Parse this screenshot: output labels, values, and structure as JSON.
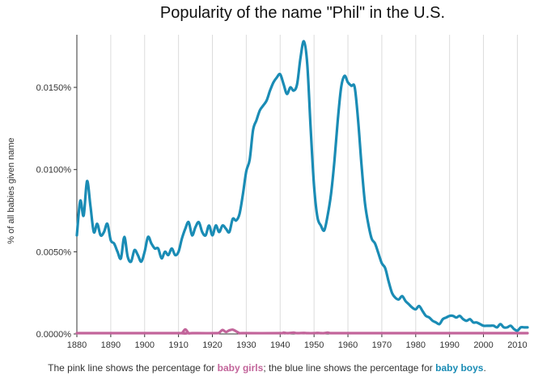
{
  "chart_data": {
    "type": "line",
    "title": "Popularity of the name \"Phil\" in the U.S.",
    "xlabel": "",
    "ylabel": "% of all babies given name",
    "xlim": [
      1880,
      2013
    ],
    "ylim": [
      0,
      0.0182
    ],
    "x_ticks": [
      1880,
      1890,
      1900,
      1910,
      1920,
      1930,
      1940,
      1950,
      1960,
      1970,
      1980,
      1990,
      2000,
      2010
    ],
    "y_ticks": [
      {
        "value": 0.0,
        "label": "0.0000%"
      },
      {
        "value": 0.005,
        "label": "0.0050%"
      },
      {
        "value": 0.01,
        "label": "0.0100%"
      },
      {
        "value": 0.015,
        "label": "0.0150%"
      }
    ],
    "grid": "vertical",
    "series": [
      {
        "name": "baby boys",
        "color": "#1a8cb5",
        "points": [
          [
            1880,
            0.006
          ],
          [
            1881,
            0.0081
          ],
          [
            1882,
            0.0072
          ],
          [
            1883,
            0.0093
          ],
          [
            1884,
            0.0078
          ],
          [
            1885,
            0.0062
          ],
          [
            1886,
            0.0067
          ],
          [
            1887,
            0.006
          ],
          [
            1888,
            0.0062
          ],
          [
            1889,
            0.0067
          ],
          [
            1890,
            0.0057
          ],
          [
            1891,
            0.0055
          ],
          [
            1892,
            0.005
          ],
          [
            1893,
            0.0046
          ],
          [
            1894,
            0.0059
          ],
          [
            1895,
            0.0047
          ],
          [
            1896,
            0.0044
          ],
          [
            1897,
            0.0051
          ],
          [
            1898,
            0.0048
          ],
          [
            1899,
            0.0044
          ],
          [
            1900,
            0.005
          ],
          [
            1901,
            0.0059
          ],
          [
            1902,
            0.0055
          ],
          [
            1903,
            0.0052
          ],
          [
            1904,
            0.0052
          ],
          [
            1905,
            0.0046
          ],
          [
            1906,
            0.005
          ],
          [
            1907,
            0.0048
          ],
          [
            1908,
            0.0052
          ],
          [
            1909,
            0.0048
          ],
          [
            1910,
            0.005
          ],
          [
            1911,
            0.0058
          ],
          [
            1912,
            0.0064
          ],
          [
            1913,
            0.0068
          ],
          [
            1914,
            0.006
          ],
          [
            1915,
            0.0065
          ],
          [
            1916,
            0.0068
          ],
          [
            1917,
            0.0062
          ],
          [
            1918,
            0.006
          ],
          [
            1919,
            0.0066
          ],
          [
            1920,
            0.006
          ],
          [
            1921,
            0.0066
          ],
          [
            1922,
            0.0062
          ],
          [
            1923,
            0.0066
          ],
          [
            1924,
            0.0064
          ],
          [
            1925,
            0.0062
          ],
          [
            1926,
            0.007
          ],
          [
            1927,
            0.0069
          ],
          [
            1928,
            0.0073
          ],
          [
            1929,
            0.0085
          ],
          [
            1930,
            0.0099
          ],
          [
            1931,
            0.0106
          ],
          [
            1932,
            0.0124
          ],
          [
            1933,
            0.013
          ],
          [
            1934,
            0.0136
          ],
          [
            1935,
            0.0139
          ],
          [
            1936,
            0.0142
          ],
          [
            1937,
            0.0148
          ],
          [
            1938,
            0.0153
          ],
          [
            1939,
            0.0156
          ],
          [
            1940,
            0.0158
          ],
          [
            1941,
            0.0152
          ],
          [
            1942,
            0.0146
          ],
          [
            1943,
            0.015
          ],
          [
            1944,
            0.0148
          ],
          [
            1945,
            0.0152
          ],
          [
            1946,
            0.0168
          ],
          [
            1947,
            0.0178
          ],
          [
            1948,
            0.0164
          ],
          [
            1949,
            0.0125
          ],
          [
            1950,
            0.009
          ],
          [
            1951,
            0.0071
          ],
          [
            1952,
            0.0066
          ],
          [
            1953,
            0.0063
          ],
          [
            1954,
            0.0072
          ],
          [
            1955,
            0.0085
          ],
          [
            1956,
            0.0105
          ],
          [
            1957,
            0.013
          ],
          [
            1958,
            0.015
          ],
          [
            1959,
            0.0157
          ],
          [
            1960,
            0.0153
          ],
          [
            1961,
            0.0151
          ],
          [
            1962,
            0.015
          ],
          [
            1963,
            0.013
          ],
          [
            1964,
            0.0103
          ],
          [
            1965,
            0.008
          ],
          [
            1966,
            0.0067
          ],
          [
            1967,
            0.0058
          ],
          [
            1968,
            0.0055
          ],
          [
            1969,
            0.0049
          ],
          [
            1970,
            0.0043
          ],
          [
            1971,
            0.004
          ],
          [
            1972,
            0.0032
          ],
          [
            1973,
            0.0025
          ],
          [
            1974,
            0.0022
          ],
          [
            1975,
            0.0021
          ],
          [
            1976,
            0.0023
          ],
          [
            1977,
            0.002
          ],
          [
            1978,
            0.0018
          ],
          [
            1979,
            0.0016
          ],
          [
            1980,
            0.0015
          ],
          [
            1981,
            0.0017
          ],
          [
            1982,
            0.0014
          ],
          [
            1983,
            0.0011
          ],
          [
            1984,
            0.001
          ],
          [
            1985,
            0.0008
          ],
          [
            1986,
            0.0007
          ],
          [
            1987,
            0.0006
          ],
          [
            1988,
            0.0009
          ],
          [
            1989,
            0.001
          ],
          [
            1990,
            0.0011
          ],
          [
            1991,
            0.0011
          ],
          [
            1992,
            0.001
          ],
          [
            1993,
            0.0011
          ],
          [
            1994,
            0.0009
          ],
          [
            1995,
            0.0008
          ],
          [
            1996,
            0.0009
          ],
          [
            1997,
            0.0007
          ],
          [
            1998,
            0.0007
          ],
          [
            1999,
            0.0006
          ],
          [
            2000,
            0.0005
          ],
          [
            2001,
            0.0005
          ],
          [
            2002,
            0.0005
          ],
          [
            2003,
            0.0005
          ],
          [
            2004,
            0.0004
          ],
          [
            2005,
            0.0006
          ],
          [
            2006,
            0.0004
          ],
          [
            2007,
            0.0004
          ],
          [
            2008,
            0.0005
          ],
          [
            2009,
            0.0003
          ],
          [
            2010,
            0.0002
          ],
          [
            2011,
            0.0004
          ],
          [
            2012,
            0.0004
          ],
          [
            2013,
            0.0004
          ]
        ]
      },
      {
        "name": "baby girls",
        "color": "#c2649a",
        "points": [
          [
            1880,
            0.0
          ],
          [
            1910,
            0.0
          ],
          [
            1911,
            3e-05
          ],
          [
            1912,
            0.00028
          ],
          [
            1913,
            3e-05
          ],
          [
            1914,
            0.0
          ],
          [
            1921,
            0.0
          ],
          [
            1922,
            8e-05
          ],
          [
            1923,
            0.00024
          ],
          [
            1924,
            0.00012
          ],
          [
            1925,
            0.00022
          ],
          [
            1926,
            0.00026
          ],
          [
            1927,
            0.00016
          ],
          [
            1928,
            3e-05
          ],
          [
            1929,
            0.0
          ],
          [
            1940,
            0.0
          ],
          [
            1941,
            8e-05
          ],
          [
            1942,
            0.0
          ],
          [
            1943,
            6e-05
          ],
          [
            1944,
            8e-05
          ],
          [
            1945,
            0.0
          ],
          [
            1947,
            6e-05
          ],
          [
            1948,
            0.0
          ],
          [
            1950,
            0.0
          ],
          [
            1951,
            6e-05
          ],
          [
            1952,
            0.0
          ],
          [
            1953,
            5e-05
          ],
          [
            1954,
            8e-05
          ],
          [
            1955,
            0.0
          ],
          [
            1957,
            0.0
          ],
          [
            1958,
            4e-05
          ],
          [
            1959,
            0.0
          ],
          [
            2013,
            0.0
          ]
        ]
      }
    ]
  },
  "caption": {
    "prefix": "The pink line shows the percentage for ",
    "girls_label": "baby girls",
    "middle": "; the blue line shows the percentage for ",
    "boys_label": "baby boys",
    "suffix": "."
  }
}
